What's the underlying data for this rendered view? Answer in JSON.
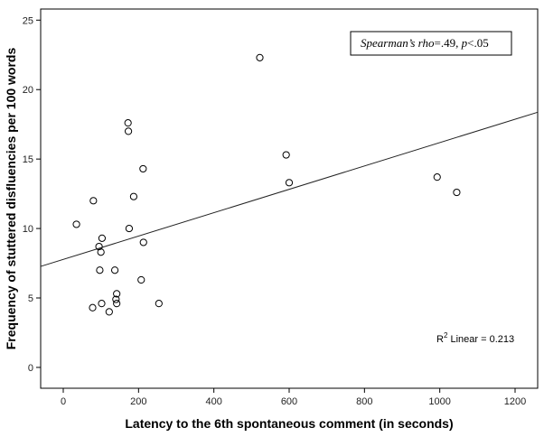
{
  "chart_data": {
    "type": "scatter",
    "xlabel": "Latency to the 6th spontaneous comment (in seconds)",
    "ylabel": "Frequency of stuttered disfluencies per 100 words",
    "xlim": [
      -60,
      1260
    ],
    "ylim": [
      -1.5,
      25.8
    ],
    "xticks": [
      0,
      200,
      400,
      600,
      800,
      1000,
      1200
    ],
    "yticks": [
      0,
      5,
      10,
      15,
      20,
      25
    ],
    "grid": false,
    "points": [
      {
        "x": 35,
        "y": 10.3
      },
      {
        "x": 80,
        "y": 12.0
      },
      {
        "x": 78,
        "y": 4.3
      },
      {
        "x": 95,
        "y": 8.7
      },
      {
        "x": 97,
        "y": 7.0
      },
      {
        "x": 100,
        "y": 8.3
      },
      {
        "x": 103,
        "y": 9.3
      },
      {
        "x": 102,
        "y": 4.6
      },
      {
        "x": 122,
        "y": 4.0
      },
      {
        "x": 137,
        "y": 7.0
      },
      {
        "x": 140,
        "y": 4.9
      },
      {
        "x": 142,
        "y": 5.3
      },
      {
        "x": 142,
        "y": 4.6
      },
      {
        "x": 172,
        "y": 17.6
      },
      {
        "x": 173,
        "y": 17.0
      },
      {
        "x": 175,
        "y": 10.0
      },
      {
        "x": 187,
        "y": 12.3
      },
      {
        "x": 207,
        "y": 6.3
      },
      {
        "x": 212,
        "y": 14.3
      },
      {
        "x": 213,
        "y": 9.0
      },
      {
        "x": 254,
        "y": 4.6
      },
      {
        "x": 522,
        "y": 22.3
      },
      {
        "x": 592,
        "y": 15.3
      },
      {
        "x": 600,
        "y": 13.3
      },
      {
        "x": 993,
        "y": 13.7
      },
      {
        "x": 1045,
        "y": 12.6
      }
    ],
    "fit_line": {
      "x": [
        -60,
        1260
      ],
      "y": [
        7.27,
        18.37
      ]
    },
    "annotations": {
      "rho_label": "Spearman’s rho",
      "rho_value": "=.49, ",
      "p_label": "p",
      "p_value": "<.05",
      "r2_prefix": "R",
      "r2_sup": "2",
      "r2_suffix": " Linear = 0.213"
    }
  }
}
